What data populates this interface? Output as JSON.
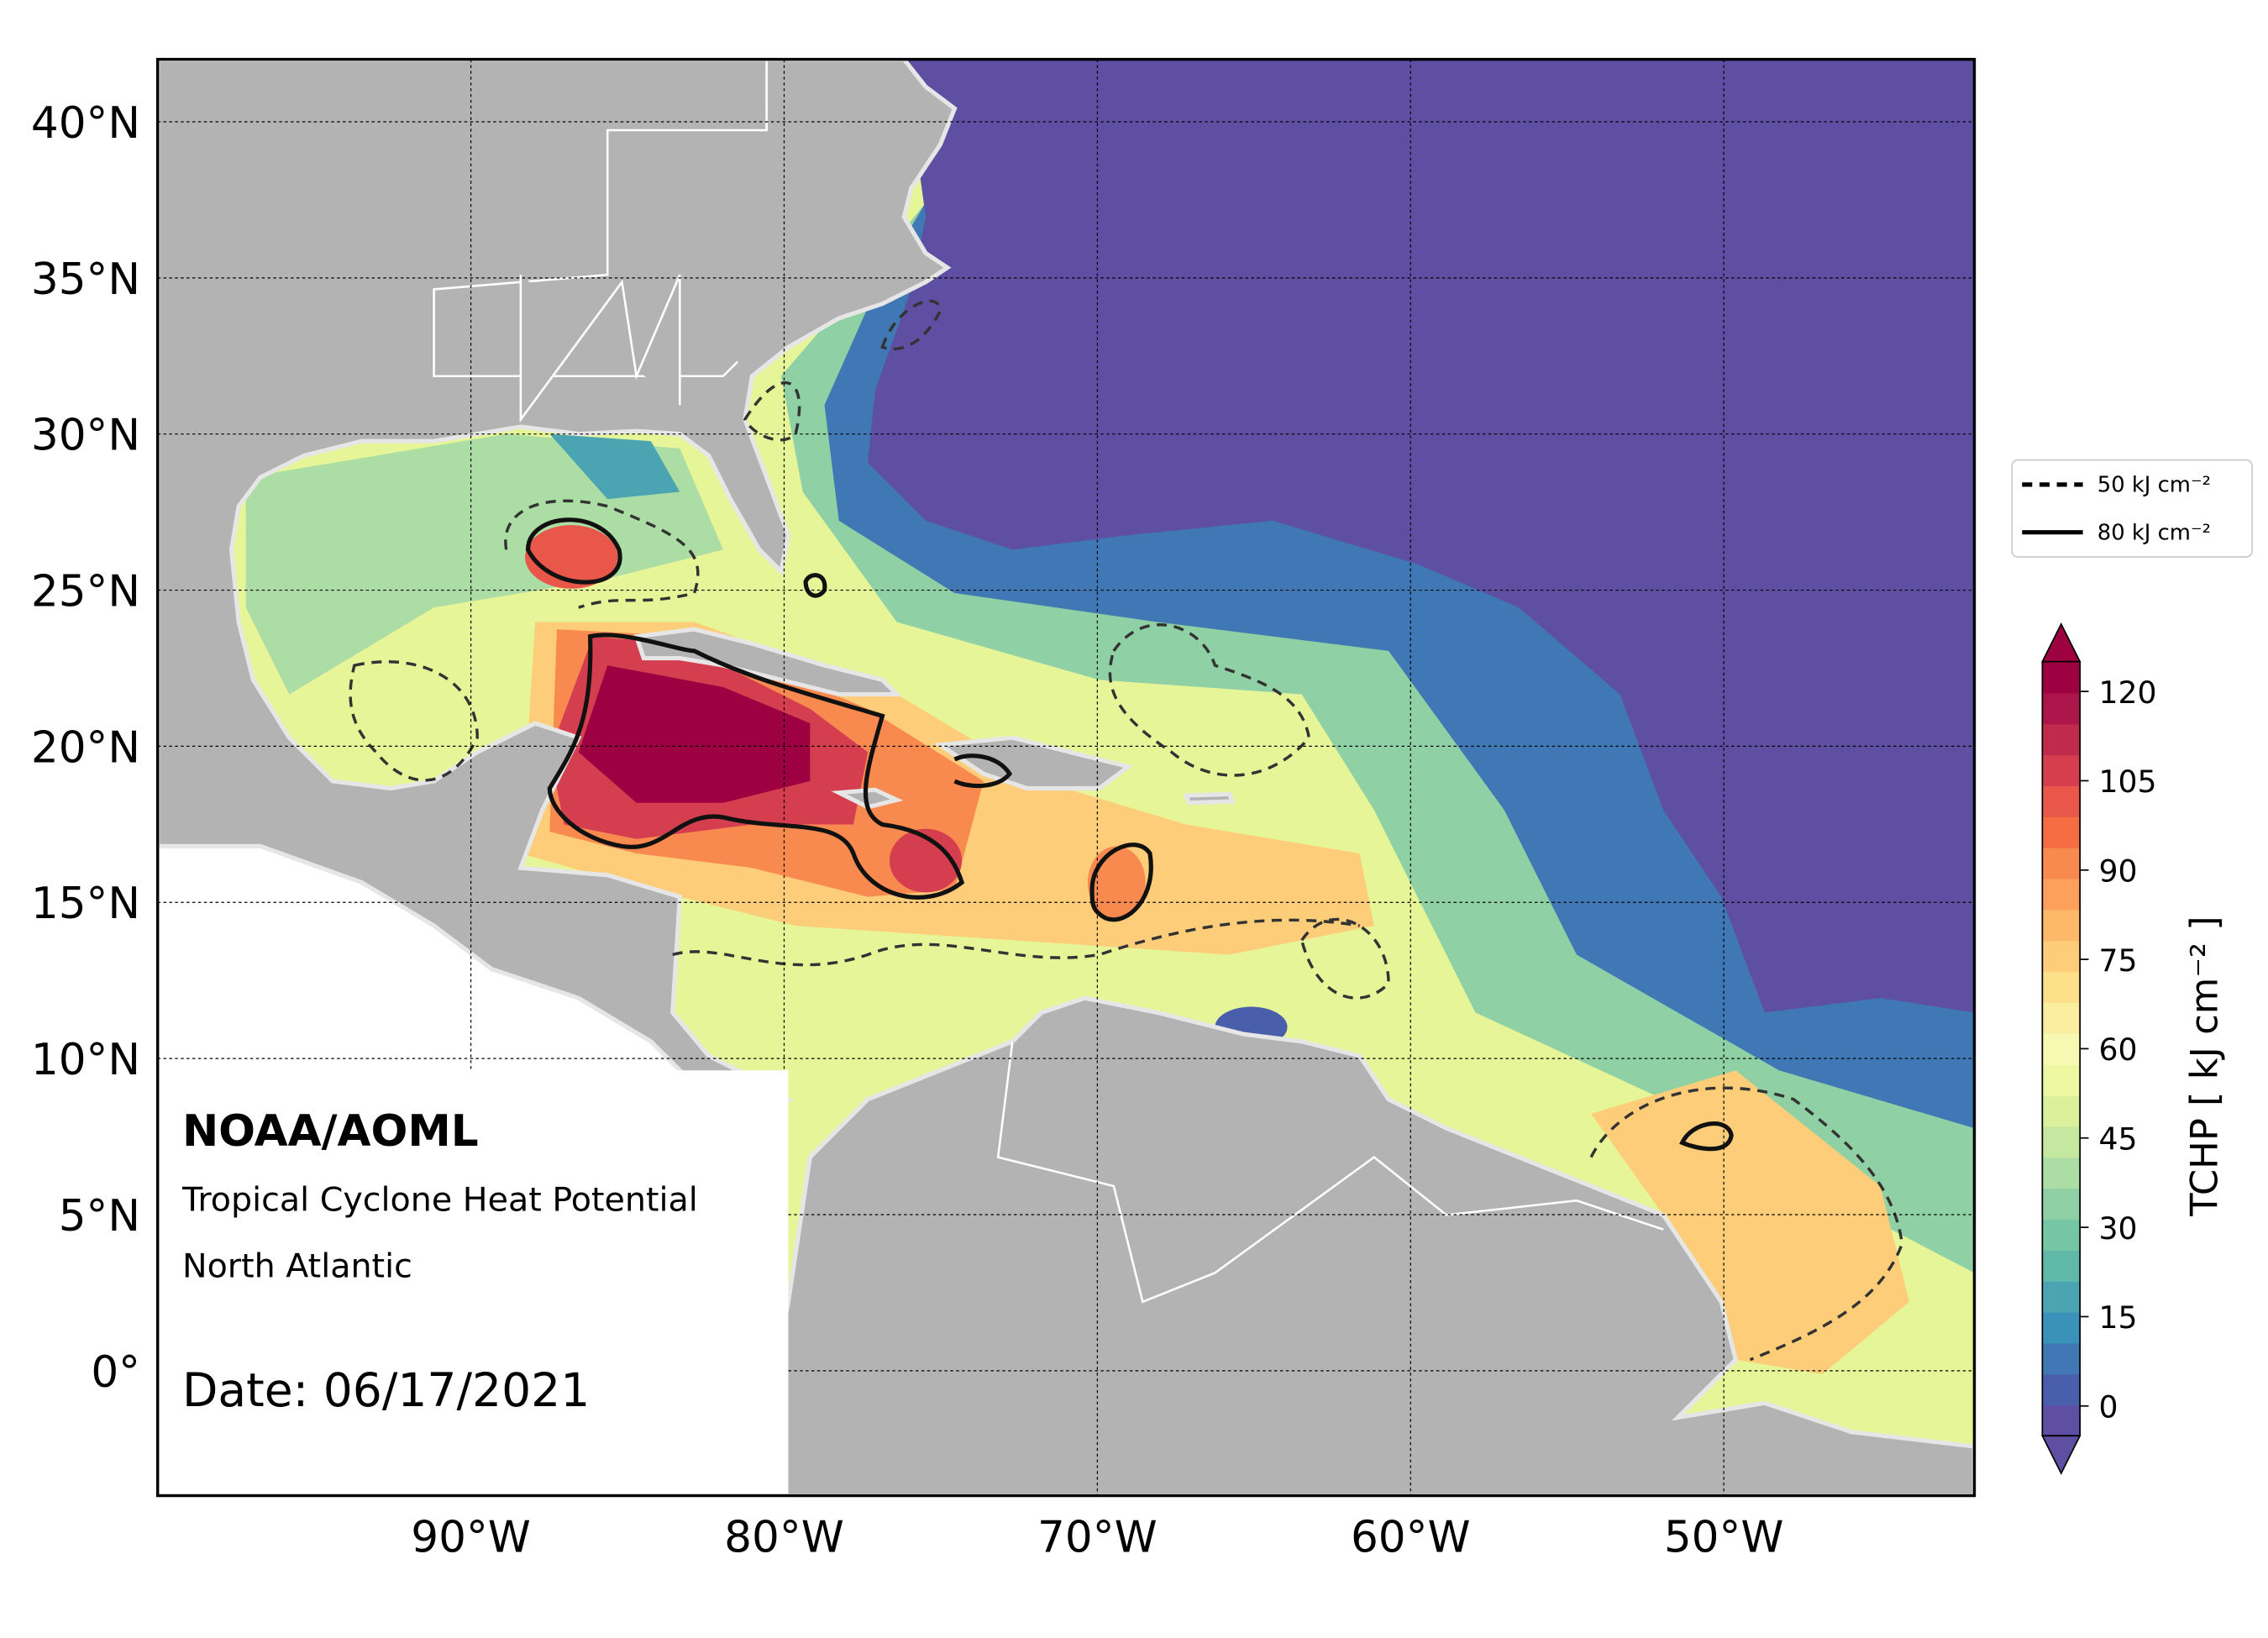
{
  "map": {
    "type": "map",
    "xlim": [
      -100,
      -42
    ],
    "ylim": [
      -4,
      42
    ],
    "xticks": [
      {
        "value": -90,
        "label": "90°W"
      },
      {
        "value": -80,
        "label": "80°W"
      },
      {
        "value": -70,
        "label": "70°W"
      },
      {
        "value": -60,
        "label": "60°W"
      },
      {
        "value": -50,
        "label": "50°W"
      }
    ],
    "yticks": [
      {
        "value": 0,
        "label": "0°"
      },
      {
        "value": 5,
        "label": "5°N"
      },
      {
        "value": 10,
        "label": "10°N"
      },
      {
        "value": 15,
        "label": "15°N"
      },
      {
        "value": 20,
        "label": "20°N"
      },
      {
        "value": 25,
        "label": "25°N"
      },
      {
        "value": 30,
        "label": "30°N"
      },
      {
        "value": 35,
        "label": "35°N"
      },
      {
        "value": 40,
        "label": "40°N"
      }
    ],
    "grid": true,
    "annotations": {
      "org": "NOAA/AOML",
      "product": "Tropical Cyclone Heat Potential",
      "region": "North Atlantic",
      "date": "Date: 06/17/2021"
    },
    "legend": [
      {
        "name": "50 kJ cm⁻²",
        "style": "dashed"
      },
      {
        "name": "80 kJ cm⁻²",
        "style": "solid"
      }
    ],
    "colorbar": {
      "label": "TCHP [ kJ cm⁻² ]",
      "vlim": [
        -5,
        125
      ],
      "ticks": [
        0,
        15,
        30,
        45,
        60,
        75,
        90,
        105,
        120
      ],
      "extend": "both",
      "colormap": [
        "#5e4fa2",
        "#4a5fab",
        "#3f78b4",
        "#3a92bb",
        "#4ba4b1",
        "#5fb8a8",
        "#76c6a5",
        "#8fd1a4",
        "#abdda4",
        "#c5e8a0",
        "#dcf09c",
        "#eef7a2",
        "#f7f9b2",
        "#fbeea0",
        "#fee08b",
        "#fdcd7a",
        "#fdb86a",
        "#fca05c",
        "#f88a50",
        "#f46d43",
        "#e8574a",
        "#d53e4f",
        "#c02a4d",
        "#ab1549",
        "#9e0142"
      ]
    }
  }
}
